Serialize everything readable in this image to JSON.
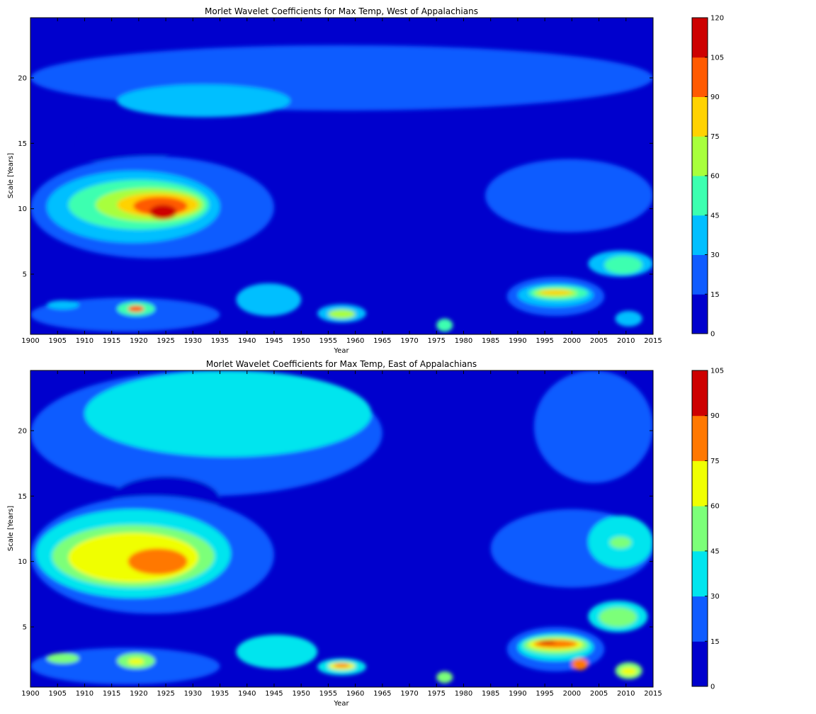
{
  "chart_data": [
    {
      "type": "heatmap",
      "title": "Morlet Wavelet Coefficients for Max Temp, West of Appalachians",
      "xlabel": "Year",
      "ylabel": "Scale [Years]",
      "xlim": [
        1900,
        2015
      ],
      "ylim": [
        0.4,
        24.6
      ],
      "xticks": [
        1900,
        1905,
        1910,
        1915,
        1920,
        1925,
        1930,
        1935,
        1940,
        1945,
        1950,
        1955,
        1960,
        1965,
        1970,
        1975,
        1980,
        1985,
        1990,
        1995,
        2000,
        2005,
        2010,
        2015
      ],
      "yticks": [
        5,
        10,
        15,
        20
      ],
      "levels": [
        0,
        15,
        30,
        45,
        60,
        75,
        90,
        105,
        120
      ],
      "level_colors": [
        "#0000cd",
        "#0f5cff",
        "#00bfff",
        "#3cffb0",
        "#a8ff3c",
        "#ffd200",
        "#ff5a00",
        "#cd0000"
      ],
      "background_level": 0,
      "features": [
        {
          "x": [
            1900,
            2015
          ],
          "y": [
            17.5,
            22.5
          ],
          "level": 1
        },
        {
          "x": [
            1916,
            1948
          ],
          "y": [
            17,
            19.5
          ],
          "level": 2
        },
        {
          "x": [
            1909,
            1926
          ],
          "y": [
            13.2,
            16.5
          ],
          "level": 0
        },
        {
          "x": [
            1900,
            1945
          ],
          "y": [
            6.2,
            14
          ],
          "level": 1
        },
        {
          "x": [
            1903,
            1935
          ],
          "y": [
            7.4,
            12.9
          ],
          "level": 2
        },
        {
          "x": [
            1907,
            1933
          ],
          "y": [
            8.4,
            12.2
          ],
          "level": 3
        },
        {
          "x": [
            1912,
            1932
          ],
          "y": [
            9.0,
            11.6
          ],
          "level": 4
        },
        {
          "x": [
            1916,
            1931
          ],
          "y": [
            9.4,
            11.2
          ],
          "level": 5
        },
        {
          "x": [
            1919,
            1929
          ],
          "y": [
            9.5,
            10.9
          ],
          "level": 6
        },
        {
          "x": [
            1922,
            1927
          ],
          "y": [
            9.2,
            10.3
          ],
          "level": 7
        },
        {
          "x": [
            1984,
            2015
          ],
          "y": [
            8.2,
            13.8
          ],
          "level": 1
        },
        {
          "x": [
            2003,
            2015
          ],
          "y": [
            4.8,
            6.8
          ],
          "level": 2
        },
        {
          "x": [
            2006,
            2013
          ],
          "y": [
            5.0,
            6.4
          ],
          "level": 3
        },
        {
          "x": [
            1988,
            2006
          ],
          "y": [
            1.8,
            4.8
          ],
          "level": 1
        },
        {
          "x": [
            1990,
            2004
          ],
          "y": [
            2.5,
            4.3
          ],
          "level": 2
        },
        {
          "x": [
            1992,
            2003
          ],
          "y": [
            3.0,
            4.1
          ],
          "level": 3
        },
        {
          "x": [
            1993,
            2001
          ],
          "y": [
            3.2,
            3.9
          ],
          "level": 4
        },
        {
          "x": [
            1994,
            2000
          ],
          "y": [
            3.4,
            3.8
          ],
          "level": 5
        },
        {
          "x": [
            1900,
            1935
          ],
          "y": [
            0.6,
            3.2
          ],
          "level": 1
        },
        {
          "x": [
            1916,
            1923
          ],
          "y": [
            1.8,
            2.9
          ],
          "level": 3
        },
        {
          "x": [
            1918,
            1921
          ],
          "y": [
            2.1,
            2.6
          ],
          "level": 6
        },
        {
          "x": [
            1903,
            1909
          ],
          "y": [
            2.3,
            3.0
          ],
          "level": 2
        },
        {
          "x": [
            1938,
            1950
          ],
          "y": [
            1.8,
            4.3
          ],
          "level": 2
        },
        {
          "x": [
            1953,
            1962
          ],
          "y": [
            1.3,
            2.7
          ],
          "level": 2
        },
        {
          "x": [
            1955,
            1960
          ],
          "y": [
            1.6,
            2.3
          ],
          "level": 4
        },
        {
          "x": [
            1975,
            1978
          ],
          "y": [
            0.6,
            1.6
          ],
          "level": 3
        },
        {
          "x": [
            2008,
            2013
          ],
          "y": [
            1.0,
            2.2
          ],
          "level": 2
        }
      ]
    },
    {
      "type": "heatmap",
      "title": "Morlet Wavelet Coefficients for Max Temp, East of Appalachians",
      "xlabel": "Year",
      "ylabel": "Scale [Years]",
      "xlim": [
        1900,
        2015
      ],
      "ylim": [
        0.4,
        24.6
      ],
      "xticks": [
        1900,
        1905,
        1910,
        1915,
        1920,
        1925,
        1930,
        1935,
        1940,
        1945,
        1950,
        1955,
        1960,
        1965,
        1970,
        1975,
        1980,
        1985,
        1990,
        1995,
        2000,
        2005,
        2010,
        2015
      ],
      "yticks": [
        5,
        10,
        15,
        20
      ],
      "levels": [
        0,
        15,
        30,
        45,
        60,
        75,
        90,
        105
      ],
      "level_colors": [
        "#0000cd",
        "#0f5cff",
        "#00e5ee",
        "#7cff79",
        "#f0ff00",
        "#ff7800",
        "#cd0000"
      ],
      "background_level": 0,
      "features": [
        {
          "x": [
            1900,
            1965
          ],
          "y": [
            15,
            24.6
          ],
          "level": 1
        },
        {
          "x": [
            1993,
            2015
          ],
          "y": [
            16,
            24.6
          ],
          "level": 1
        },
        {
          "x": [
            1910,
            1963
          ],
          "y": [
            18,
            24.6
          ],
          "level": 2
        },
        {
          "x": [
            1915,
            1935
          ],
          "y": [
            13.0,
            16.5
          ],
          "level": 0
        },
        {
          "x": [
            1900,
            1945
          ],
          "y": [
            6.0,
            15.0
          ],
          "level": 1
        },
        {
          "x": [
            1901,
            1937
          ],
          "y": [
            7.2,
            14.0
          ],
          "level": 2
        },
        {
          "x": [
            1904,
            1934
          ],
          "y": [
            8.0,
            12.8
          ],
          "level": 3
        },
        {
          "x": [
            1907,
            1931
          ],
          "y": [
            8.4,
            12.2
          ],
          "level": 4
        },
        {
          "x": [
            1918,
            1929
          ],
          "y": [
            9.0,
            11.0
          ],
          "level": 5
        },
        {
          "x": [
            1985,
            2015
          ],
          "y": [
            8.0,
            14.0
          ],
          "level": 1
        },
        {
          "x": [
            2003,
            2015
          ],
          "y": [
            9.5,
            13.5
          ],
          "level": 2
        },
        {
          "x": [
            2007,
            2011
          ],
          "y": [
            11.0,
            11.9
          ],
          "level": 3
        },
        {
          "x": [
            2003,
            2014
          ],
          "y": [
            4.6,
            7.0
          ],
          "level": 2
        },
        {
          "x": [
            2005,
            2012
          ],
          "y": [
            5.0,
            6.5
          ],
          "level": 3
        },
        {
          "x": [
            1988,
            2006
          ],
          "y": [
            1.6,
            5.0
          ],
          "level": 1
        },
        {
          "x": [
            1990,
            2004
          ],
          "y": [
            2.4,
            4.5
          ],
          "level": 2
        },
        {
          "x": [
            1991,
            2003
          ],
          "y": [
            2.9,
            4.3
          ],
          "level": 3
        },
        {
          "x": [
            1992,
            2002
          ],
          "y": [
            3.2,
            4.1
          ],
          "level": 4
        },
        {
          "x": [
            1993,
            2001
          ],
          "y": [
            3.4,
            4.0
          ],
          "level": 5
        },
        {
          "x": [
            1994,
            1997
          ],
          "y": [
            3.7,
            3.95
          ],
          "level": 6
        },
        {
          "x": [
            2000,
            2003
          ],
          "y": [
            1.7,
            2.6
          ],
          "level": 5
        },
        {
          "x": [
            1900,
            1935
          ],
          "y": [
            0.6,
            3.4
          ],
          "level": 1
        },
        {
          "x": [
            1916,
            1923
          ],
          "y": [
            1.8,
            3.0
          ],
          "level": 3
        },
        {
          "x": [
            1918,
            1921
          ],
          "y": [
            2.1,
            2.6
          ],
          "level": 4
        },
        {
          "x": [
            1903,
            1909
          ],
          "y": [
            2.2,
            3.0
          ],
          "level": 3
        },
        {
          "x": [
            1938,
            1953
          ],
          "y": [
            1.8,
            4.4
          ],
          "level": 2
        },
        {
          "x": [
            1953,
            1962
          ],
          "y": [
            1.3,
            2.6
          ],
          "level": 2
        },
        {
          "x": [
            1955,
            1960
          ],
          "y": [
            1.7,
            2.3
          ],
          "level": 4
        },
        {
          "x": [
            1956,
            1959
          ],
          "y": [
            1.9,
            2.2
          ],
          "level": 5
        },
        {
          "x": [
            1975,
            1978
          ],
          "y": [
            0.7,
            1.6
          ],
          "level": 3
        },
        {
          "x": [
            2008,
            2013
          ],
          "y": [
            1.0,
            2.3
          ],
          "level": 3
        },
        {
          "x": [
            2009,
            2012
          ],
          "y": [
            1.3,
            1.9
          ],
          "level": 4
        }
      ]
    }
  ]
}
